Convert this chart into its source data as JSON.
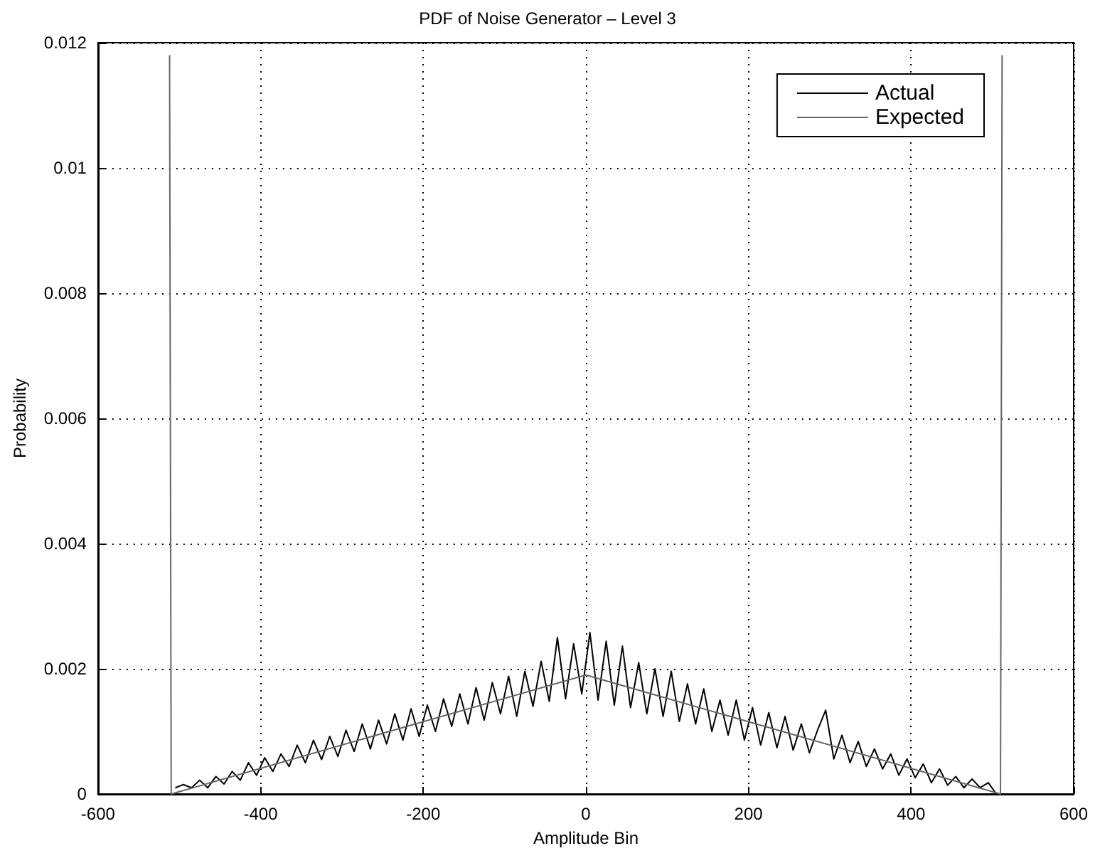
{
  "chart_data": {
    "type": "line",
    "title": "PDF of Noise Generator – Level 3",
    "xlabel": "Amplitude Bin",
    "ylabel": "Probability",
    "xlim": [
      -600,
      600
    ],
    "xticks": [
      -600,
      -400,
      -200,
      0,
      200,
      400,
      600
    ],
    "ylim": [
      0,
      0.012
    ],
    "yticks": [
      0,
      0.002,
      0.004,
      0.006,
      0.008,
      0.01,
      0.012
    ],
    "grid": true,
    "legend": "top right",
    "marker": "none",
    "line_style": "solid",
    "series": [
      {
        "name": "Actual",
        "color": "#000000",
        "x": [
          -505,
          -495,
          -485,
          -475,
          -465,
          -455,
          -445,
          -435,
          -425,
          -415,
          -405,
          -395,
          -385,
          -375,
          -365,
          -355,
          -345,
          -335,
          -325,
          -315,
          -305,
          -295,
          -285,
          -275,
          -265,
          -255,
          -245,
          -235,
          -225,
          -215,
          -205,
          -195,
          -185,
          -175,
          -165,
          -155,
          -145,
          -135,
          -125,
          -115,
          -105,
          -95,
          -85,
          -75,
          -65,
          -55,
          -45,
          -35,
          -25,
          -15,
          -5,
          5,
          15,
          25,
          35,
          45,
          55,
          65,
          75,
          85,
          95,
          105,
          115,
          125,
          135,
          145,
          155,
          165,
          175,
          185,
          195,
          205,
          215,
          225,
          235,
          245,
          255,
          265,
          275,
          285,
          295,
          305,
          315,
          325,
          335,
          345,
          355,
          365,
          375,
          385,
          395,
          405,
          415,
          425,
          435,
          445,
          455,
          465,
          475,
          485,
          495,
          505
        ],
        "values": [
          0.0001,
          0.00015,
          0.0001,
          0.00022,
          0.0001,
          0.00028,
          0.00016,
          0.00036,
          0.00022,
          0.0005,
          0.0003,
          0.00058,
          0.00036,
          0.00064,
          0.00044,
          0.00078,
          0.0005,
          0.00086,
          0.00055,
          0.00092,
          0.0006,
          0.00102,
          0.00068,
          0.00112,
          0.00072,
          0.00118,
          0.0008,
          0.00128,
          0.00086,
          0.00136,
          0.00092,
          0.00142,
          0.001,
          0.00152,
          0.00108,
          0.0016,
          0.00112,
          0.0017,
          0.00118,
          0.00178,
          0.00128,
          0.00188,
          0.00124,
          0.00196,
          0.0014,
          0.00212,
          0.00148,
          0.0025,
          0.00152,
          0.0024,
          0.0016,
          0.00258,
          0.0015,
          0.00244,
          0.00142,
          0.00236,
          0.00138,
          0.0021,
          0.00128,
          0.002,
          0.00124,
          0.00196,
          0.00116,
          0.00176,
          0.00112,
          0.00168,
          0.001,
          0.0015,
          0.00094,
          0.0015,
          0.00086,
          0.00138,
          0.00078,
          0.0013,
          0.00074,
          0.00124,
          0.0007,
          0.00112,
          0.00066,
          0.00102,
          0.00134,
          0.00056,
          0.00094,
          0.0005,
          0.00084,
          0.00044,
          0.00072,
          0.0004,
          0.00064,
          0.0003,
          0.00056,
          0.00026,
          0.00048,
          0.00018,
          0.0004,
          0.00014,
          0.00028,
          0.0001,
          0.00024,
          0.0001,
          0.00018,
          0
        ]
      },
      {
        "name": "Expected",
        "color": "#666666",
        "x": [
          -512,
          -510,
          0,
          510,
          512
        ],
        "values": [
          0.0118,
          0,
          0.0019,
          0,
          0.0118
        ]
      }
    ]
  }
}
